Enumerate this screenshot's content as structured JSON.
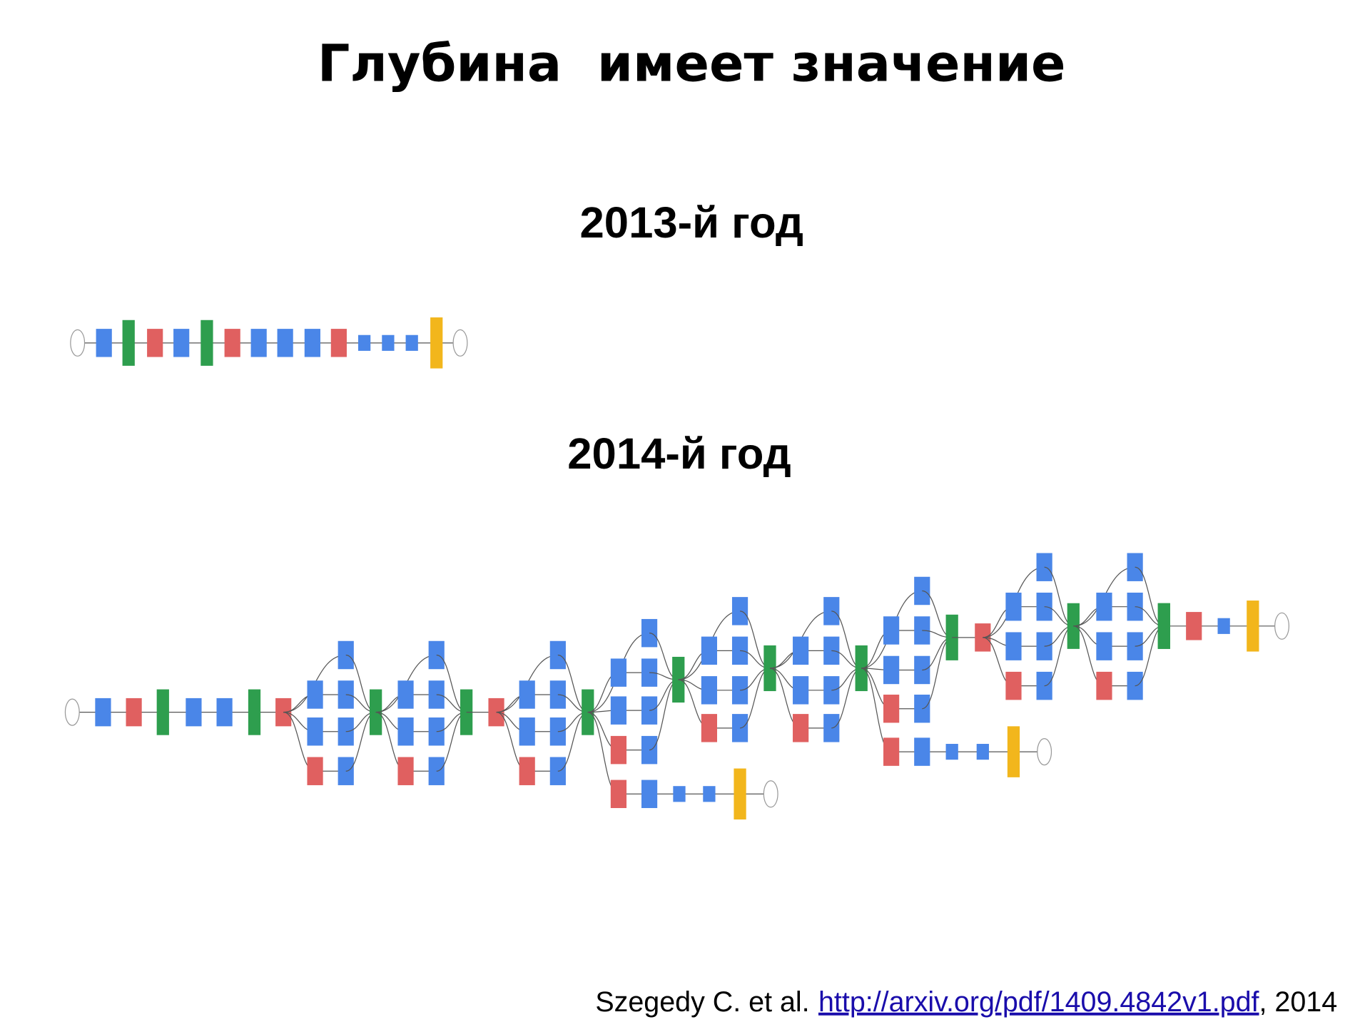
{
  "slide": {
    "title": "Глубина  имеет значение",
    "networks": [
      {
        "label": "2013-й год"
      },
      {
        "label": "2014-й год"
      }
    ],
    "citation": {
      "authors": "Szegedy C. et al.",
      "link": "http://arxiv.org/pdf/1409.4842v1.pdf",
      "year": ", 2014"
    }
  }
}
